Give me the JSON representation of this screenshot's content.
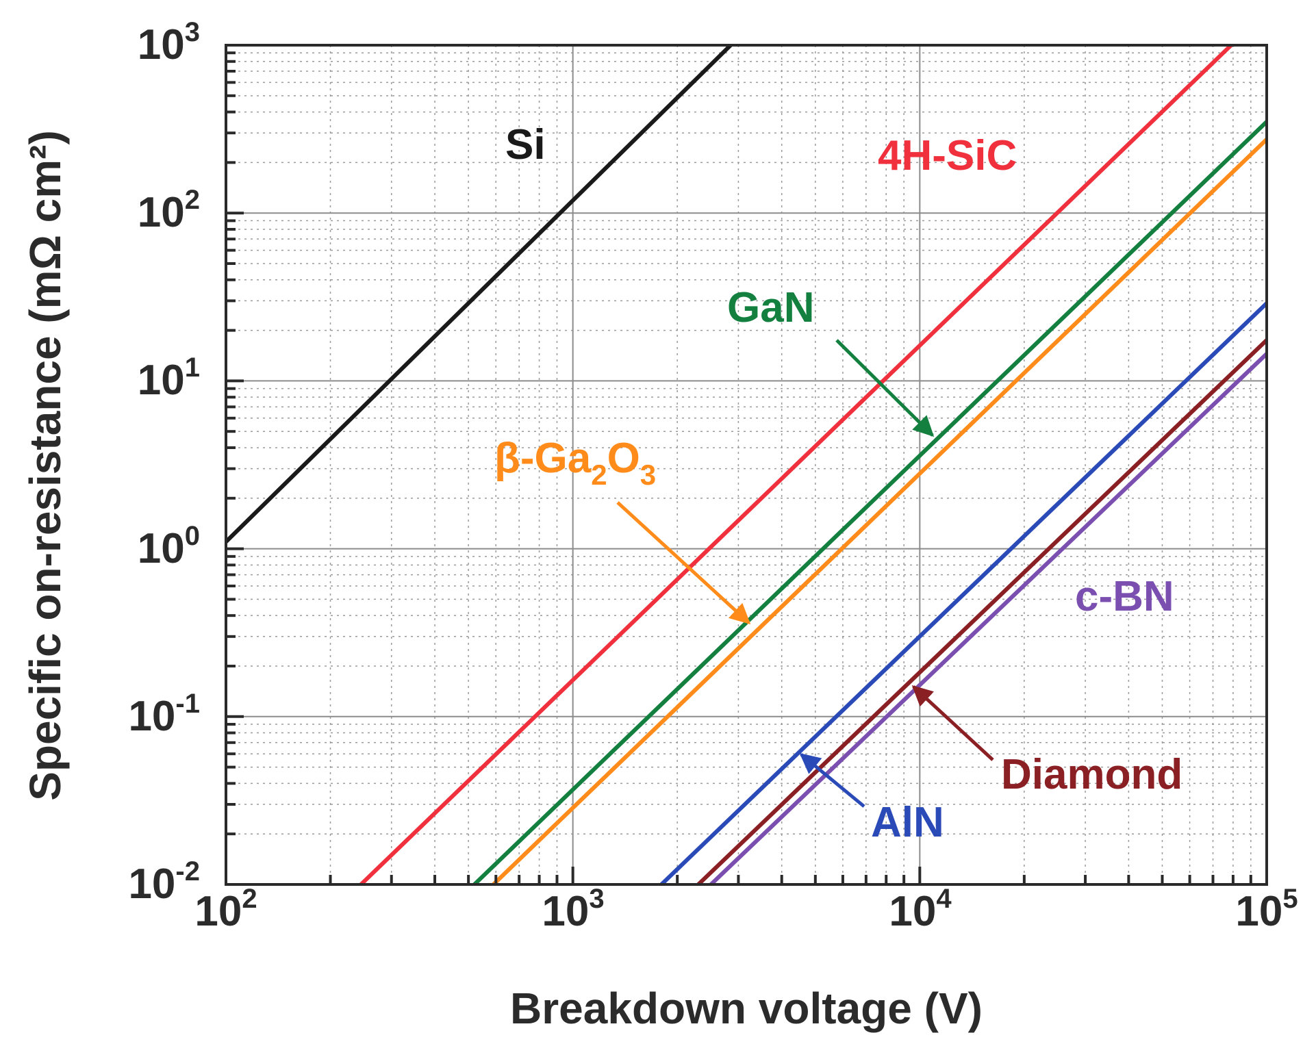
{
  "chart_data": {
    "type": "line",
    "x_scale": "log",
    "y_scale": "log",
    "xlabel": "Breakdown voltage (V)",
    "ylabel": "Specific on-resistance (mΩ cm²)",
    "xlim": [
      100,
      100000
    ],
    "ylim": [
      0.01,
      1000
    ],
    "grid": true,
    "x_ticks": [
      {
        "value": 100,
        "base": "10",
        "exp": "2"
      },
      {
        "value": 1000,
        "base": "10",
        "exp": "3"
      },
      {
        "value": 10000,
        "base": "10",
        "exp": "4"
      },
      {
        "value": 100000,
        "base": "10",
        "exp": "5"
      }
    ],
    "y_ticks": [
      {
        "value": 0.01,
        "base": "10",
        "exp": "-2"
      },
      {
        "value": 0.1,
        "base": "10",
        "exp": "-1"
      },
      {
        "value": 1,
        "base": "10",
        "exp": "0"
      },
      {
        "value": 10,
        "base": "10",
        "exp": "1"
      },
      {
        "value": 100,
        "base": "10",
        "exp": "2"
      },
      {
        "value": 1000,
        "base": "10",
        "exp": "3"
      }
    ],
    "series": [
      {
        "name": "Si",
        "color": "#1a1a1a",
        "x": [
          100,
          2850
        ],
        "y": [
          1.1,
          1000
        ]
      },
      {
        "name": "4H-SiC",
        "color": "#f0303c",
        "x": [
          245,
          79000
        ],
        "y": [
          0.01,
          1000
        ]
      },
      {
        "name": "GaN",
        "color": "#138040",
        "x": [
          520,
          100000
        ],
        "y": [
          0.01,
          350
        ]
      },
      {
        "name": "β-Ga2O3",
        "color": "#ff8c1a",
        "x": [
          590,
          100000
        ],
        "y": [
          0.01,
          275
        ]
      },
      {
        "name": "AlN",
        "color": "#2a4ab8",
        "x": [
          1800,
          100000
        ],
        "y": [
          0.01,
          29
        ]
      },
      {
        "name": "Diamond",
        "color": "#8a1f24",
        "x": [
          2300,
          100000
        ],
        "y": [
          0.01,
          17.5
        ]
      },
      {
        "name": "c-BN",
        "color": "#7a4fb0",
        "x": [
          2500,
          100000
        ],
        "y": [
          0.01,
          14.5
        ]
      }
    ],
    "annotations": [
      {
        "text": "Si",
        "color": "#1a1a1a"
      },
      {
        "text": "4H-SiC",
        "color": "#f0303c"
      },
      {
        "text": "GaN",
        "color": "#138040",
        "arrow_to": {
          "x": 11500,
          "y": 5.2
        }
      },
      {
        "text": "β-Ga",
        "sub1": "2",
        "mid": "O",
        "sub2": "3",
        "color": "#ff8c1a",
        "arrow_to": {
          "x": 3500,
          "y": 0.3
        }
      },
      {
        "text": "AlN",
        "color": "#2a4ab8",
        "arrow_to": {
          "x": 4650,
          "y": 0.06
        }
      },
      {
        "text": "Diamond",
        "color": "#8a1f24",
        "arrow_to": {
          "x": 9800,
          "y": 0.16
        }
      },
      {
        "text": "c-BN",
        "color": "#7a4fb0"
      }
    ]
  }
}
